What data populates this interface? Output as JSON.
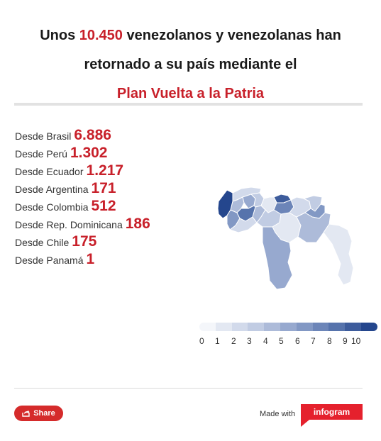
{
  "title": {
    "line1_a": "Unos ",
    "line1_num": "10.450",
    "line1_b": " venezolanos y venezolanas han",
    "line2": "retornado a su país mediante el",
    "line3": "Plan Vuelta a la Patria"
  },
  "list": [
    {
      "label": "Desde Brasil",
      "value": "6.886"
    },
    {
      "label": "Desde Perú",
      "value": "1.302"
    },
    {
      "label": "Desde Ecuador",
      "value": "1.217"
    },
    {
      "label": "Desde Argentina",
      "value": "171"
    },
    {
      "label": "Desde Colombia",
      "value": "512"
    },
    {
      "label": "Desde Rep. Dominicana",
      "value": "186"
    },
    {
      "label": "Desde Chile",
      "value": "175"
    },
    {
      "label": "Desde Panamá",
      "value": "1"
    }
  ],
  "legend": {
    "ticks": [
      "0",
      "1",
      "2",
      "3",
      "4",
      "5",
      "6",
      "7",
      "8",
      "9",
      "10"
    ],
    "colors": [
      "#f4f6fa",
      "#e3e8f2",
      "#d2daeb",
      "#c1cce3",
      "#adbbd9",
      "#97a9cf",
      "#8298c4",
      "#6c85b8",
      "#5673ac",
      "#3d5c9c",
      "#24468d"
    ]
  },
  "map": {
    "regions": [
      {
        "id": "r1",
        "level": 10
      },
      {
        "id": "r2",
        "level": 6
      },
      {
        "id": "r3",
        "level": 2
      },
      {
        "id": "r4",
        "level": 4
      },
      {
        "id": "r5",
        "level": 5
      },
      {
        "id": "r6",
        "level": 3
      },
      {
        "id": "r7",
        "level": 8
      },
      {
        "id": "r8",
        "level": 2
      },
      {
        "id": "r9",
        "level": 4
      },
      {
        "id": "r10",
        "level": 9
      },
      {
        "id": "r11",
        "level": 1
      },
      {
        "id": "r12",
        "level": 7
      },
      {
        "id": "r13",
        "level": 3
      },
      {
        "id": "r14",
        "level": 1
      },
      {
        "id": "r15",
        "level": 2
      },
      {
        "id": "r16",
        "level": 3
      },
      {
        "id": "r17",
        "level": 6
      },
      {
        "id": "r18",
        "level": 4
      },
      {
        "id": "r19",
        "level": 5
      },
      {
        "id": "r20",
        "level": 1
      }
    ]
  },
  "footer": {
    "share_label": "Share",
    "made_with": "Made with",
    "brand": "infogram"
  }
}
